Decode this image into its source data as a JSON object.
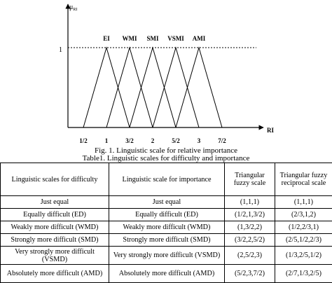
{
  "figure": {
    "y_axis_label": "μ_RI",
    "y_axis_base": "μ",
    "y_axis_sub": "RI",
    "x_axis_label": "RI",
    "y_tick_one": "1",
    "x_ticks": [
      "1/2",
      "1",
      "3/2",
      "2",
      "5/2",
      "3",
      "7/2"
    ],
    "peak_labels": [
      "EI",
      "WMI",
      "SMI",
      "VSMI",
      "AMI"
    ]
  },
  "chart_data": {
    "type": "line",
    "title": "Fig. 1. Linguistic scale for relative importance",
    "xlabel": "RI",
    "ylabel": "μ_RI",
    "x_ticks": [
      "1/2",
      "1",
      "3/2",
      "2",
      "5/2",
      "3",
      "7/2"
    ],
    "xlim": [
      0.5,
      3.5
    ],
    "ylim": [
      0,
      1
    ],
    "series": [
      {
        "name": "EI",
        "x": [
          0.5,
          1,
          1.5
        ],
        "y": [
          0,
          1,
          0
        ]
      },
      {
        "name": "WMI",
        "x": [
          1,
          1.5,
          2
        ],
        "y": [
          0,
          1,
          0
        ]
      },
      {
        "name": "SMI",
        "x": [
          1.5,
          2,
          2.5
        ],
        "y": [
          0,
          1,
          0
        ]
      },
      {
        "name": "VSMI",
        "x": [
          2,
          2.5,
          3
        ],
        "y": [
          0,
          1,
          0
        ]
      },
      {
        "name": "AMI",
        "x": [
          2.5,
          3,
          3.5
        ],
        "y": [
          0,
          1,
          0
        ]
      }
    ]
  },
  "captions": {
    "figure": "Fig. 1. Linguistic scale for relative importance",
    "table": "Table1. Linguistic scales for difficulty and importance"
  },
  "table": {
    "headers": [
      "Linguistic scales for difficulty",
      "Linguistic scale for importance",
      "Triangular fuzzy scale",
      "Triangular fuzzy reciprocal scale"
    ],
    "rows": [
      [
        "Just equal",
        "Just equal",
        "(1,1,1)",
        "(1,1,1)"
      ],
      [
        "Equally difficult (ED)",
        "Equally difficult (ED)",
        "(1/2,1,3/2)",
        "(2/3,1,2)"
      ],
      [
        "Weakly more difficult (WMD)",
        "Weakly more difficult (WMD)",
        "(1,3/2,2)",
        "(1/2,2/3,1)"
      ],
      [
        "Strongly more difficult (SMD)",
        "Strongly more difficult (SMD)",
        "(3/2,2,5/2)",
        "(2/5,1/2,2/3)"
      ],
      [
        "Very strongly more difficult (VSMD)",
        "Very strongly more difficult (VSMD)",
        "(2,5/2,3)",
        "(1/3,2/5,1/2)"
      ],
      [
        "Absolutely more difficult (AMD)",
        "Absolutely more difficult (AMD)",
        "(5/2,3,7/2)",
        "(2/7,1/3,2/5)"
      ]
    ]
  }
}
